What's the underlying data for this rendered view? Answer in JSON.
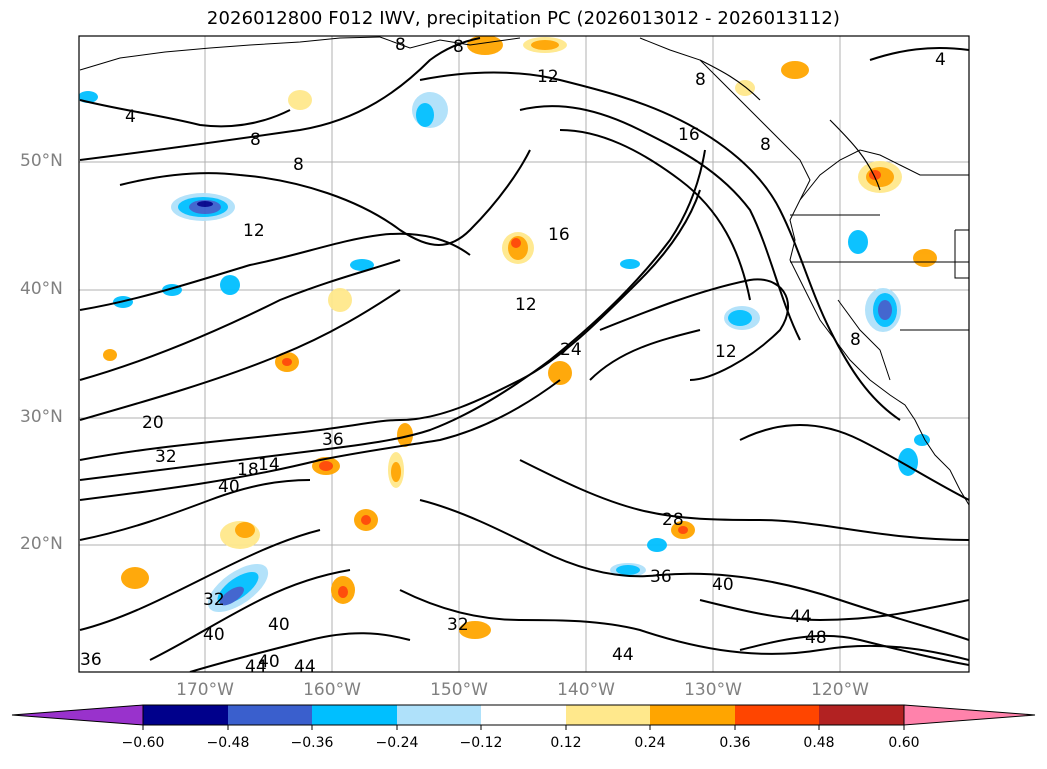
{
  "title": "2026012800 F012 IWV, precipitation PC (2026013012 - 2026013112)",
  "lat_labels": [
    "50°N",
    "40°N",
    "30°N",
    "20°N"
  ],
  "lon_labels": [
    "170°W",
    "160°W",
    "150°W",
    "140°W",
    "130°W",
    "120°W"
  ],
  "colorbar": {
    "ticks": [
      "−0.60",
      "−0.48",
      "−0.36",
      "−0.24",
      "−0.12",
      "0.12",
      "0.24",
      "0.36",
      "0.48",
      "0.60"
    ],
    "colors": [
      "#9932cc",
      "#00008b",
      "#3a5fcd",
      "#00bfff",
      "#afe1fa",
      "#ffffff",
      "#ffe88c",
      "#ffa500",
      "#ff4500",
      "#b22222",
      "#ff82ab"
    ]
  },
  "contour_labels": [
    "4",
    "8",
    "8",
    "8",
    "12",
    "12",
    "16",
    "12",
    "12",
    "24",
    "8",
    "8",
    "16",
    "20",
    "32",
    "36",
    "18",
    "14",
    "40",
    "28",
    "36",
    "40",
    "44",
    "48",
    "32",
    "40",
    "40",
    "44",
    "32",
    "36",
    "44",
    "40",
    "44",
    "4",
    "8",
    "8"
  ],
  "colors": {
    "land_outline": "#000000",
    "grid": "#b0b0b0",
    "contour": "#000000"
  }
}
